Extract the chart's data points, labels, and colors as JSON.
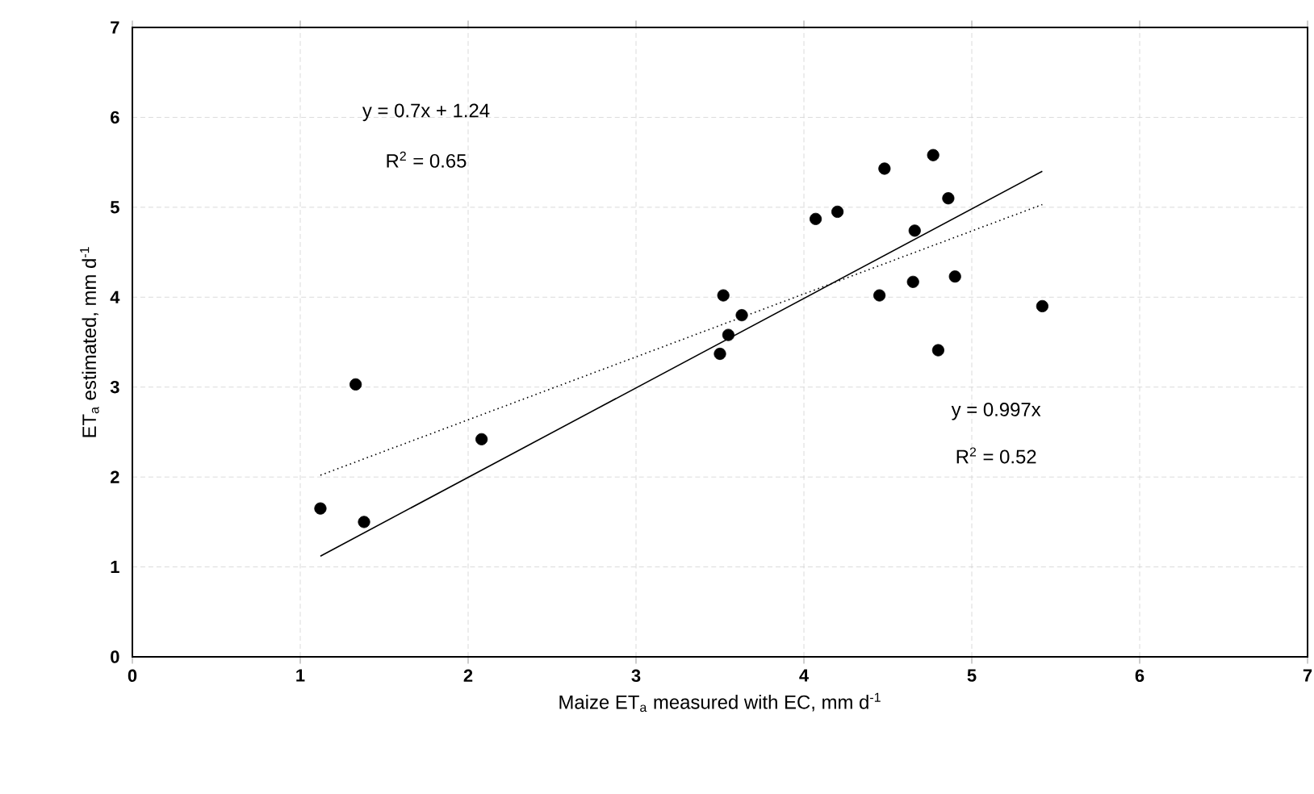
{
  "chart_data": {
    "type": "scatter",
    "xlabel": "Maize ET$_{a}$ measured with EC, mm d$^{-1}$",
    "ylabel": "ET$_{a}$ estimated, mm d$^{-1}$",
    "xlim": [
      0,
      7
    ],
    "ylim": [
      0,
      7
    ],
    "xticks": [
      0,
      1,
      2,
      3,
      4,
      5,
      6,
      7
    ],
    "yticks": [
      0,
      1,
      2,
      3,
      4,
      5,
      6,
      7
    ],
    "grid": true,
    "series": [
      {
        "color": "#000000",
        "marker": "circle",
        "x": [
          1.12,
          1.33,
          1.38,
          2.08,
          3.5,
          3.52,
          3.55,
          3.63,
          4.07,
          4.2,
          4.45,
          4.48,
          4.65,
          4.66,
          4.77,
          4.8,
          4.86,
          4.9,
          5.42
        ],
        "values": [
          1.65,
          3.03,
          1.5,
          2.42,
          3.37,
          4.02,
          3.58,
          3.8,
          4.87,
          4.95,
          4.02,
          5.43,
          4.17,
          4.74,
          5.58,
          3.41,
          5.1,
          4.23,
          3.9
        ]
      },
      {
        "type": "line",
        "color": "#000000",
        "marker": "none",
        "line_style": "solid",
        "x": [
          1.12,
          5.42
        ],
        "values": [
          1.12,
          5.4
        ]
      },
      {
        "type": "line",
        "color": "#000000",
        "marker": "none",
        "line_style": "dotted",
        "x": [
          1.12,
          5.42
        ],
        "values": [
          2.02,
          5.03
        ]
      }
    ],
    "annotations": [
      "y = 0.7x + 1.24",
      "R$^{2}$ = 0.65",
      "y = 0.997x",
      "R$^{2}$ = 0.52"
    ]
  }
}
